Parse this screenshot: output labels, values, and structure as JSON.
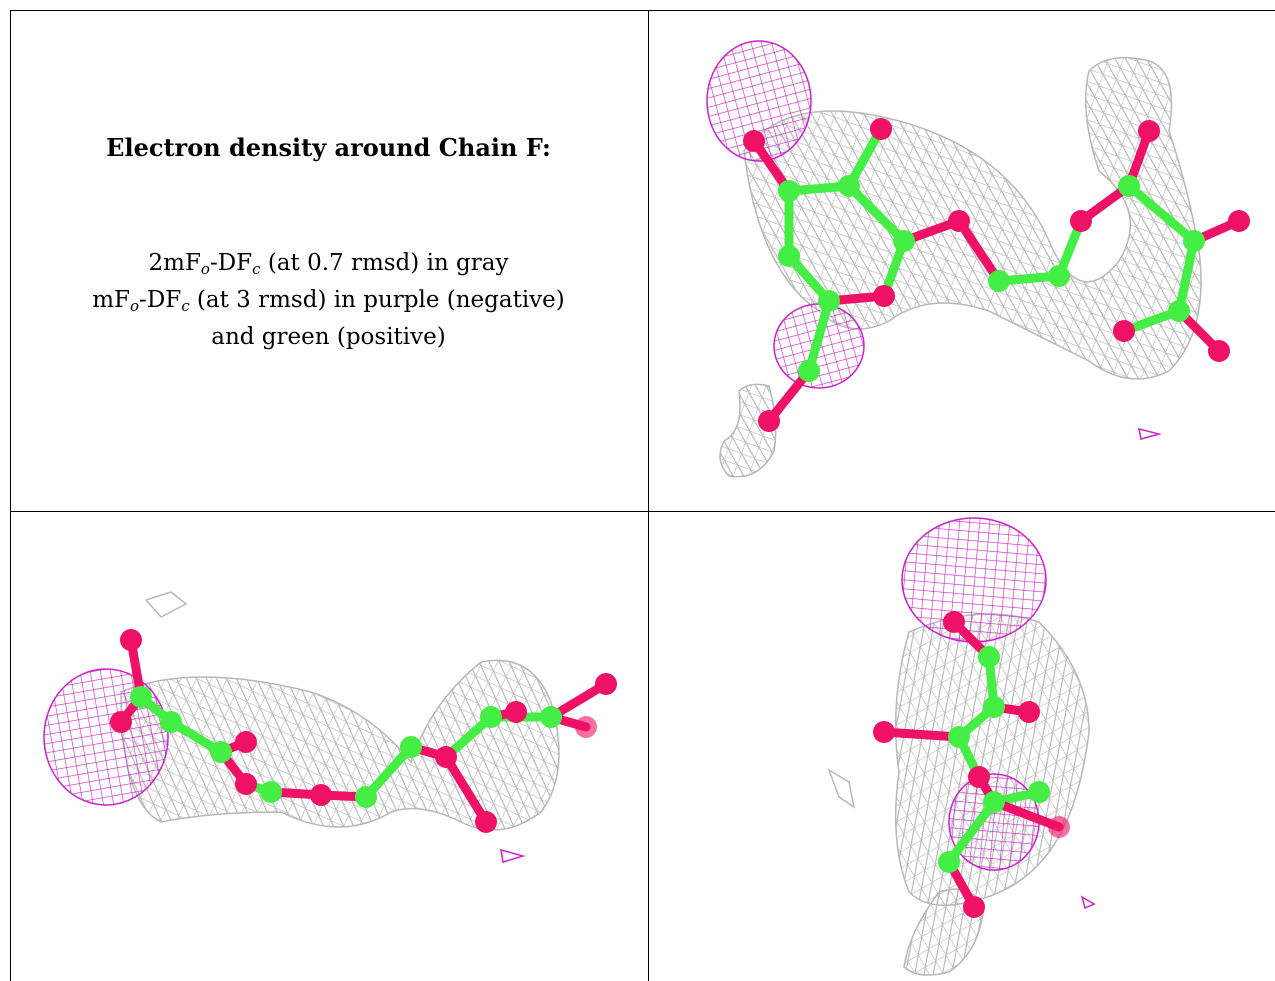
{
  "caption": {
    "title": "Electron density around Chain F:",
    "line1_prefix": "2mF",
    "line1_sub_o": "o",
    "line1_mid": "-DF",
    "line1_sub_c": "c",
    "line1_suffix": " (at 0.7 rmsd) in gray",
    "line2_prefix": "mF",
    "line2_sub_o": "o",
    "line2_mid": "-DF",
    "line2_sub_c": "c",
    "line2_suffix": " (at 3 rmsd) in purple (negative)",
    "line3": "and green (positive)"
  },
  "colors": {
    "mesh_2fofc": "#b8b8b8",
    "mesh_negative": "#cc22cc",
    "carbon": "#44ee44",
    "oxygen": "#ee1166",
    "border": "#000000"
  },
  "panels": [
    {
      "view": "view-1",
      "mesh": "gray-and-purple"
    },
    {
      "view": "view-2",
      "mesh": "gray-and-purple"
    },
    {
      "view": "view-3",
      "mesh": "gray-and-purple"
    }
  ]
}
